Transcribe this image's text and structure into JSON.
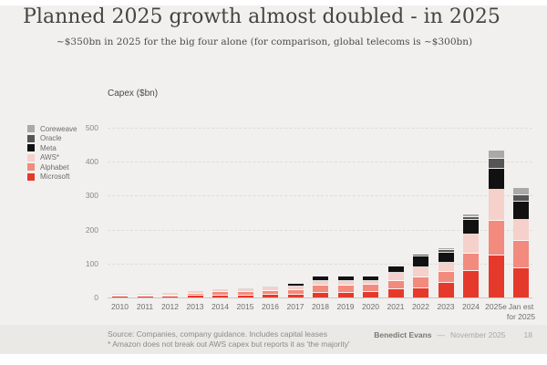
{
  "header": {
    "title": "Planned 2025 growth almost doubled - in 2025",
    "subtitle": "~$350bn in 2025 for the big four alone (for comparison, global telecoms is ~$300bn)"
  },
  "chart_data": {
    "type": "bar",
    "stacked": true,
    "ylabel": "Capex ($bn)",
    "ylim": [
      0,
      500
    ],
    "yticks": [
      0,
      100,
      200,
      300,
      400,
      500
    ],
    "grid": "horizontal-dashed",
    "legend_position": "left",
    "categories": [
      "2010",
      "2011",
      "2012",
      "2013",
      "2014",
      "2015",
      "2016",
      "2017",
      "2018",
      "2019",
      "2020",
      "2021",
      "2022",
      "2023",
      "2024",
      "2025e",
      "Jan est\nfor 2025"
    ],
    "series": [
      {
        "name": "Microsoft",
        "color": "#e5392c",
        "values": [
          2,
          2.5,
          3,
          4.5,
          5.5,
          6,
          9,
          8.5,
          13,
          14,
          17,
          23,
          28,
          44,
          78,
          123,
          87
        ]
      },
      {
        "name": "Alphabet",
        "color": "#f28b7d",
        "values": [
          4,
          3.5,
          3.5,
          7.5,
          10.5,
          10,
          10,
          13,
          23,
          22,
          20,
          25,
          31,
          30,
          51,
          102,
          80
        ]
      },
      {
        "name": "AWS*",
        "color": "#f6d0ca",
        "values": [
          1.5,
          2,
          3,
          3.5,
          5,
          7,
          10,
          11,
          12,
          12,
          11,
          25,
          30,
          27,
          56,
          93,
          62
        ]
      },
      {
        "name": "Meta",
        "color": "#111111",
        "values": [
          0.5,
          1,
          1.5,
          1.5,
          2,
          2.5,
          4.5,
          7,
          14,
          15,
          15,
          19,
          32,
          31,
          43,
          61,
          53
        ]
      },
      {
        "name": "Oracle",
        "color": "#565656",
        "values": [
          0,
          0,
          0,
          0,
          0,
          0,
          0,
          0,
          0,
          0,
          0,
          0,
          5,
          9,
          9,
          30,
          18
        ]
      },
      {
        "name": "Coreweave",
        "color": "#a9a9a9",
        "values": [
          0,
          0,
          0,
          0,
          0,
          0,
          0,
          0,
          0,
          0,
          0,
          0,
          0,
          3,
          8,
          25,
          24
        ]
      }
    ]
  },
  "legend": {
    "items": [
      {
        "label": "Coreweave",
        "color": "#a9a9a9"
      },
      {
        "label": "Oracle",
        "color": "#565656"
      },
      {
        "label": "Meta",
        "color": "#111111"
      },
      {
        "label": "AWS*",
        "color": "#f6d0ca"
      },
      {
        "label": "Alphabet",
        "color": "#f28b7d"
      },
      {
        "label": "Microsoft",
        "color": "#e5392c"
      }
    ]
  },
  "footer": {
    "source_line1": "Source: Companies, company guidance. Includes capital leases",
    "source_line2": "* Amazon does not break out AWS capex but reports it as 'the majority'",
    "author": "Benedict Evans",
    "dash": "—",
    "date": "November 2025",
    "page": "18"
  }
}
